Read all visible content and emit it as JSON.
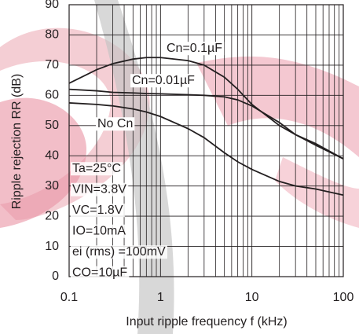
{
  "chart_data": {
    "type": "line",
    "xlabel": "Input ripple frequency f (kHz)",
    "ylabel": "Ripple rejection RR (dB)",
    "xscale": "log",
    "x": [
      0.1,
      0.2,
      0.3,
      0.5,
      0.7,
      1,
      2,
      3,
      5,
      7,
      10,
      20,
      30,
      50,
      100
    ],
    "series": [
      {
        "name": "Cn=0.1µF",
        "color": "#231f20",
        "values": [
          64,
          68.5,
          70.5,
          72,
          72.5,
          72.5,
          71.5,
          70,
          66,
          62,
          57,
          50,
          47,
          44,
          39
        ]
      },
      {
        "name": "Cn=0.01µF",
        "color": "#231f20",
        "values": [
          62,
          61.5,
          61,
          60.8,
          60.6,
          60.5,
          60.2,
          60,
          59.5,
          58.5,
          56.5,
          51,
          47,
          43.5,
          39
        ]
      },
      {
        "name": "No Cn",
        "color": "#231f20",
        "values": [
          57.5,
          57,
          56.5,
          55.5,
          54.5,
          53,
          49,
          46,
          41,
          38,
          35.5,
          31.5,
          30,
          29,
          27
        ]
      }
    ],
    "xlim": [
      0.1,
      100
    ],
    "xticks": [
      0.1,
      1,
      10,
      100
    ],
    "xminorticks": [
      0.2,
      0.3,
      0.4,
      0.5,
      0.6,
      0.7,
      0.8,
      0.9,
      2,
      3,
      4,
      5,
      6,
      7,
      8,
      9,
      20,
      30,
      40,
      50,
      60,
      70,
      80,
      90
    ],
    "ylim": [
      0,
      90
    ],
    "yticks": [
      0,
      10,
      20,
      30,
      40,
      50,
      60,
      70,
      80,
      90
    ],
    "grid": true,
    "annotations": [
      "Ta=25°C",
      "VIN=3.8V",
      "VC=1.8V",
      "IO=10mA",
      "ei (rms) =100mV",
      "CO=10µF"
    ]
  }
}
